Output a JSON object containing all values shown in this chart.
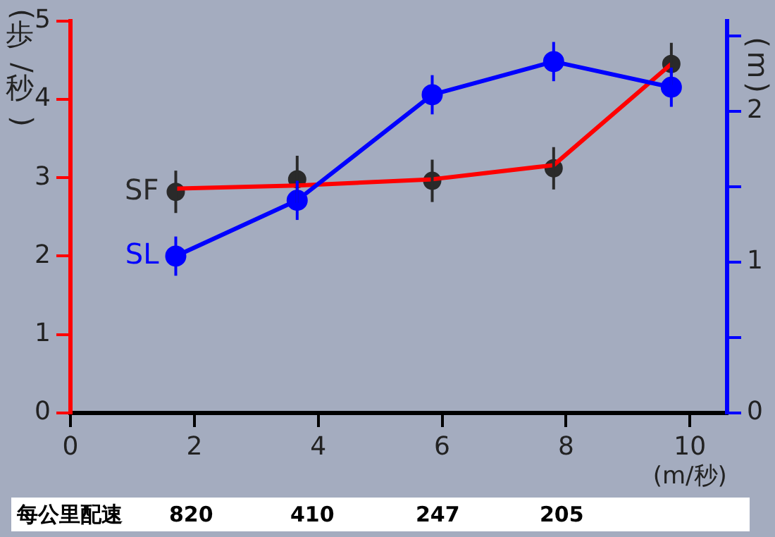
{
  "chart_data": {
    "type": "line",
    "ylabel": "(歩/秒)",
    "y2label": "(m)",
    "xlabel": "(m/秒)",
    "x": [
      1.7,
      3.66,
      5.84,
      7.8,
      9.7
    ],
    "series": [
      {
        "name": "SF",
        "type": "scatter",
        "axis": "y",
        "color": "#2a2a2a",
        "marker": "circle",
        "values": [
          2.82,
          2.98,
          2.96,
          3.12,
          4.45
        ],
        "errors": [
          0.27,
          0.3,
          0.27,
          0.27,
          0.27
        ]
      },
      {
        "axis": "y",
        "color": "#ff0000",
        "marker": "none",
        "values": [
          2.86,
          2.9,
          2.98,
          3.16,
          4.45
        ]
      },
      {
        "name": "SL",
        "type": "line",
        "axis": "y2",
        "color": "#0000ff",
        "marker": "circle",
        "values": [
          1.04,
          1.41,
          2.11,
          2.33,
          2.16
        ],
        "errors": [
          0.13,
          0.13,
          0.13,
          0.13,
          0.13
        ]
      }
    ],
    "xlim": [
      0,
      10.6
    ],
    "xticks": [
      0,
      2,
      4,
      6,
      8,
      10
    ],
    "ylim": [
      0,
      5
    ],
    "yticks": [
      0,
      1,
      2,
      3,
      4,
      5
    ],
    "y2lim": [
      0,
      2.6
    ],
    "y2ticks": [
      0,
      {
        "value": 0.5,
        "label": null
      },
      1,
      {
        "value": 1.5,
        "label": null
      },
      2,
      {
        "value": 2.5,
        "label": null
      }
    ],
    "grid": false,
    "legend": false,
    "annotations": [
      "每公里配速",
      "820",
      "410",
      "247",
      "205"
    ]
  }
}
